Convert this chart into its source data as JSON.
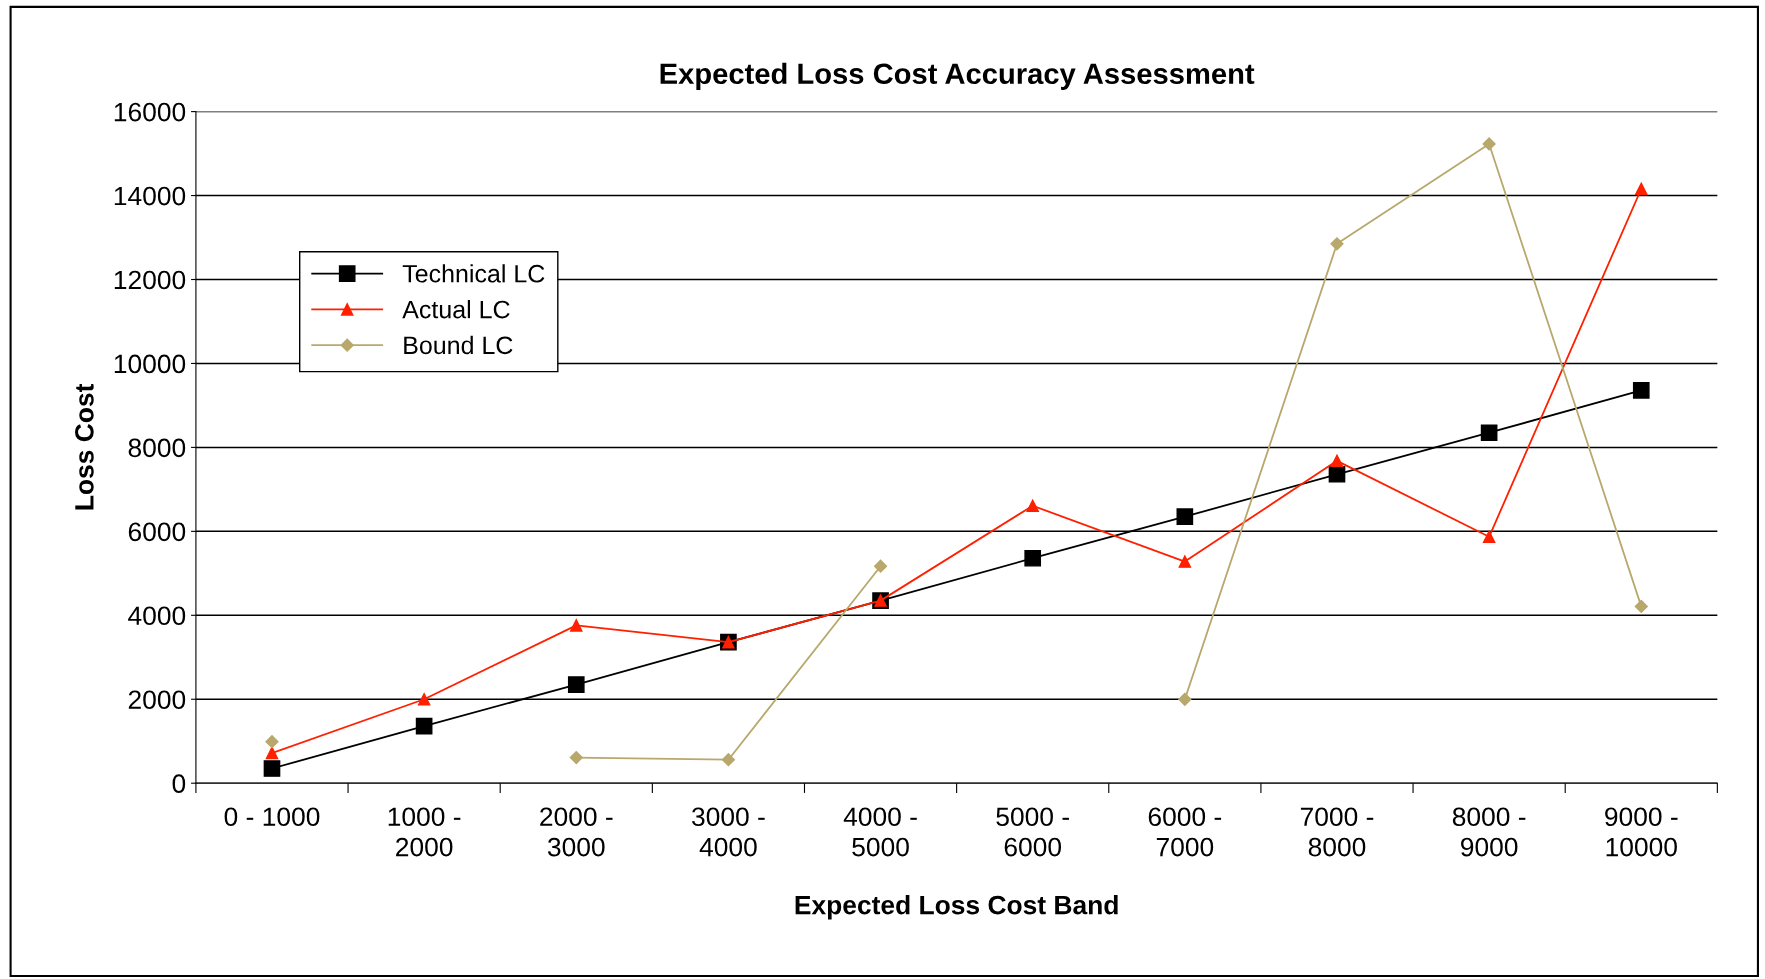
{
  "chart_data": {
    "type": "line",
    "title": "Expected Loss Cost Accuracy Assessment",
    "xlabel": "Expected Loss Cost Band",
    "ylabel": "Loss Cost",
    "categories": [
      "0 - 1000",
      "1000 - 2000",
      "2000 - 3000",
      "3000 - 4000",
      "4000 - 5000",
      "5000 - 6000",
      "6000 - 7000",
      "7000 - 8000",
      "8000 - 9000",
      "9000 - 10000"
    ],
    "series": [
      {
        "name": "Technical LC",
        "color": "#000000",
        "marker": "square",
        "values": [
          350,
          1360,
          2350,
          3360,
          4350,
          5360,
          6350,
          7360,
          8350,
          9360
        ]
      },
      {
        "name": "Actual LC",
        "color": "#ff2000",
        "marker": "triangle",
        "values": [
          720,
          2000,
          3760,
          3360,
          4350,
          6610,
          5280,
          7680,
          5870,
          14160
        ]
      },
      {
        "name": "Bound LC",
        "color": "#b8a86c",
        "marker": "diamond",
        "values": [
          990,
          null,
          610,
          560,
          5170,
          null,
          2000,
          12850,
          15230,
          4210
        ]
      }
    ],
    "ylim": [
      0,
      16000
    ],
    "yticks": [
      0,
      2000,
      4000,
      6000,
      8000,
      10000,
      12000,
      14000,
      16000
    ],
    "grid": "y",
    "legend": "upper left",
    "line_style": "solid"
  }
}
